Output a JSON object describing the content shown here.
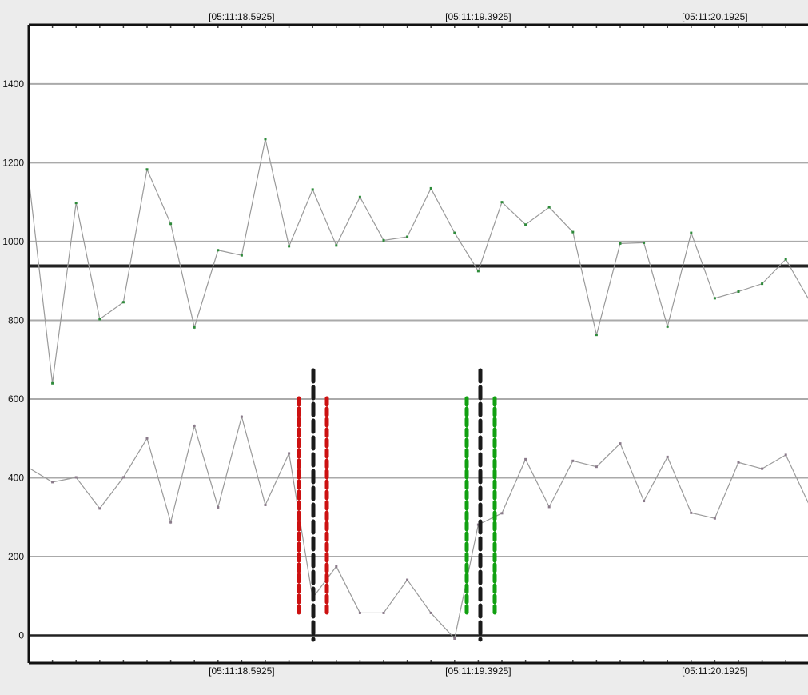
{
  "chart_data": {
    "type": "line",
    "x_tick_labels": [
      "[05:11:18.5925]",
      "[05:11:19.3925]",
      "[05:11:20.1925]"
    ],
    "y_tick_labels": [
      "0",
      "200",
      "400",
      "600",
      "800",
      "1000",
      "1200",
      "1400"
    ],
    "ylim": [
      -70,
      1550
    ],
    "grid": true,
    "reference_line_y": 938,
    "series": [
      {
        "marker_color": "#2e8b3a",
        "values": [
          1160,
          640,
          1098,
          803,
          846,
          1183,
          1045,
          782,
          978,
          965,
          1260,
          988,
          1132,
          990,
          1113,
          1003,
          1012,
          1135,
          1022,
          925,
          1100,
          1043,
          1087,
          1024,
          763,
          995,
          997,
          784,
          1022,
          856,
          873,
          893,
          955,
          850
        ]
      },
      {
        "marker_color": "#8a7a8a",
        "values": [
          425,
          389,
          401,
          322,
          401,
          500,
          287,
          532,
          325,
          555,
          331,
          462,
          95,
          175,
          57,
          57,
          141,
          57,
          -8,
          281,
          310,
          447,
          326,
          443,
          428,
          487,
          341,
          453,
          311,
          297,
          439,
          423,
          458,
          330
        ]
      }
    ],
    "vertical_markers": [
      {
        "color": "#cc1111"
      },
      {
        "color": "#1a1a1a"
      },
      {
        "color": "#cc1111"
      },
      {
        "color": "#11a011"
      },
      {
        "color": "#1a1a1a"
      },
      {
        "color": "#11a011"
      }
    ]
  }
}
